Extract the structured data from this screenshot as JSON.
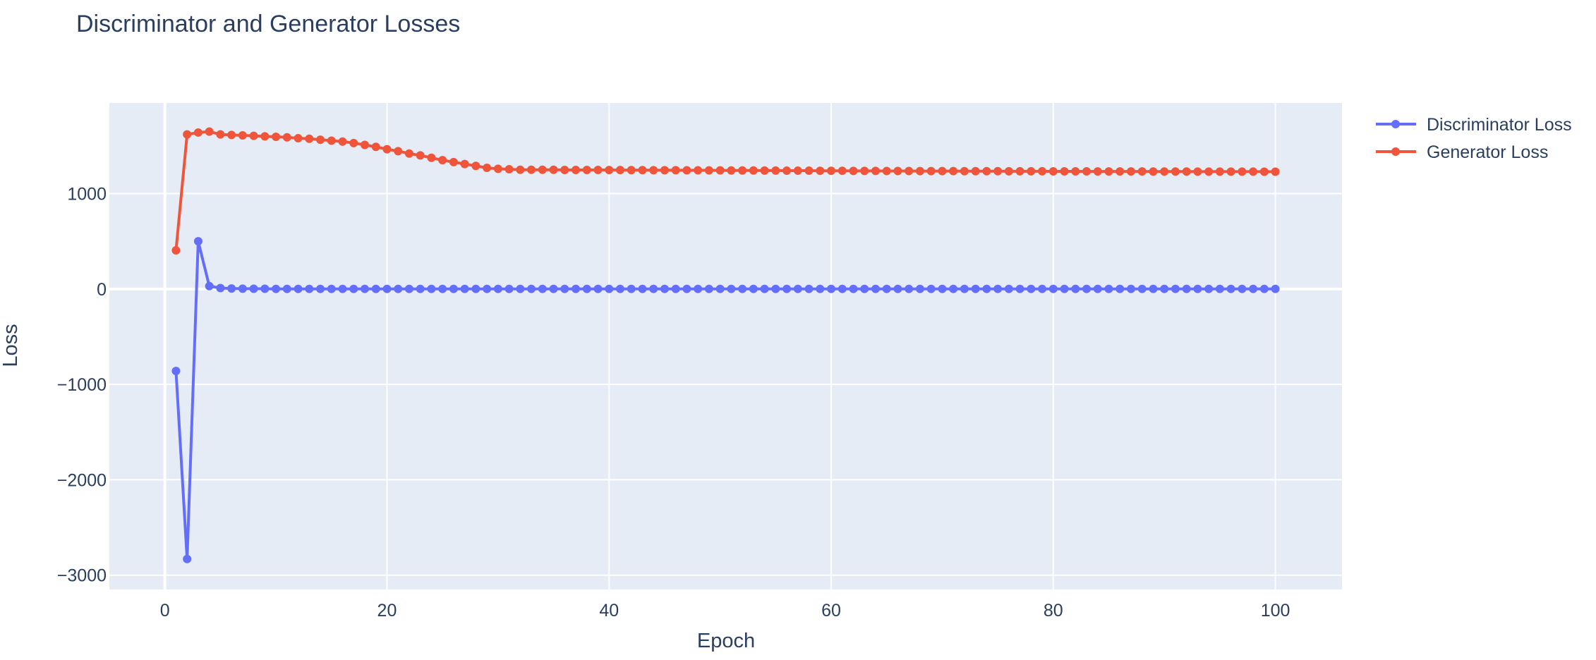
{
  "chart_data": {
    "type": "line",
    "title": "Discriminator and Generator Losses",
    "xlabel": "Epoch",
    "ylabel": "Loss",
    "xlim": [
      -5,
      106
    ],
    "ylim": [
      -3150,
      1950
    ],
    "x_ticks": [
      0,
      20,
      40,
      60,
      80,
      100
    ],
    "x_tick_labels": [
      "0",
      "20",
      "40",
      "60",
      "80",
      "100"
    ],
    "y_ticks": [
      -3000,
      -2000,
      -1000,
      0,
      1000
    ],
    "y_tick_labels": [
      "−3000",
      "−2000",
      "−1000",
      "0",
      "1000"
    ],
    "grid": true,
    "legend_position": "top-right",
    "markers": true,
    "x": [
      1,
      2,
      3,
      4,
      5,
      6,
      7,
      8,
      9,
      10,
      11,
      12,
      13,
      14,
      15,
      16,
      17,
      18,
      19,
      20,
      21,
      22,
      23,
      24,
      25,
      26,
      27,
      28,
      29,
      30,
      31,
      32,
      33,
      34,
      35,
      36,
      37,
      38,
      39,
      40,
      41,
      42,
      43,
      44,
      45,
      46,
      47,
      48,
      49,
      50,
      51,
      52,
      53,
      54,
      55,
      56,
      57,
      58,
      59,
      60,
      61,
      62,
      63,
      64,
      65,
      66,
      67,
      68,
      69,
      70,
      71,
      72,
      73,
      74,
      75,
      76,
      77,
      78,
      79,
      80,
      81,
      82,
      83,
      84,
      85,
      86,
      87,
      88,
      89,
      90,
      91,
      92,
      93,
      94,
      95,
      96,
      97,
      98,
      99,
      100
    ],
    "series": [
      {
        "name": "Discriminator Loss",
        "color": "#636efa",
        "values": [
          -860,
          -2830,
          500,
          30,
          10,
          5,
          3,
          2,
          2,
          1,
          1,
          1,
          1,
          1,
          1,
          1,
          1,
          1,
          1,
          1,
          1,
          1,
          1,
          1,
          1,
          1,
          1,
          1,
          1,
          1,
          1,
          1,
          1,
          1,
          1,
          1,
          1,
          1,
          1,
          1,
          1,
          1,
          1,
          1,
          1,
          1,
          1,
          1,
          1,
          1,
          1,
          1,
          1,
          1,
          1,
          1,
          1,
          1,
          1,
          1,
          1,
          1,
          1,
          1,
          1,
          1,
          1,
          1,
          1,
          1,
          1,
          1,
          1,
          1,
          1,
          1,
          1,
          1,
          1,
          1,
          1,
          1,
          1,
          1,
          1,
          1,
          1,
          1,
          1,
          1,
          1,
          1,
          1,
          1,
          1,
          1,
          1,
          1,
          1,
          1
        ]
      },
      {
        "name": "Generator Loss",
        "color": "#ef553b",
        "values": [
          405,
          1620,
          1640,
          1650,
          1620,
          1615,
          1610,
          1605,
          1600,
          1595,
          1590,
          1580,
          1575,
          1565,
          1555,
          1545,
          1530,
          1510,
          1490,
          1465,
          1445,
          1420,
          1400,
          1375,
          1350,
          1330,
          1310,
          1290,
          1270,
          1260,
          1255,
          1250,
          1250,
          1250,
          1250,
          1248,
          1248,
          1248,
          1248,
          1247,
          1247,
          1246,
          1246,
          1245,
          1245,
          1245,
          1244,
          1244,
          1243,
          1243,
          1242,
          1242,
          1242,
          1241,
          1241,
          1240,
          1240,
          1240,
          1239,
          1239,
          1239,
          1238,
          1238,
          1238,
          1237,
          1237,
          1237,
          1236,
          1236,
          1236,
          1236,
          1235,
          1235,
          1235,
          1235,
          1234,
          1234,
          1234,
          1234,
          1233,
          1233,
          1233,
          1233,
          1232,
          1232,
          1232,
          1232,
          1232,
          1231,
          1231,
          1231,
          1231,
          1230,
          1230,
          1230,
          1230,
          1230,
          1230,
          1229,
          1229
        ]
      }
    ]
  },
  "colors": {
    "plot_bg": "#e5ecf6",
    "grid": "#ffffff",
    "text": "#2a3f5f"
  }
}
